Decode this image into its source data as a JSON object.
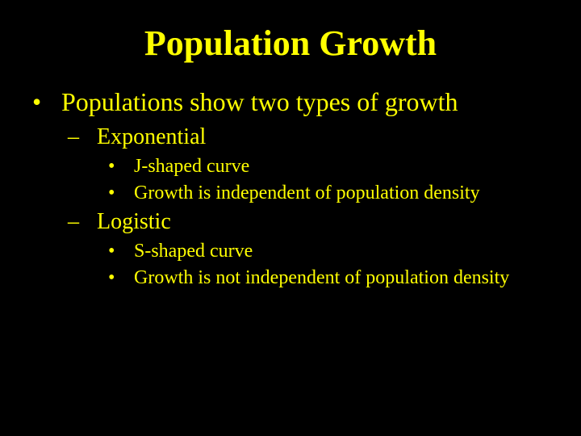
{
  "slide": {
    "background_color": "#000000",
    "text_color": "#ffff00",
    "font_family": "Times New Roman",
    "title": "Population Growth",
    "title_fontsize": 44,
    "title_bold": true,
    "bullets": {
      "level1_marker": "•",
      "level2_marker": "–",
      "level3_marker": "•",
      "level1_fontsize": 32,
      "level2_fontsize": 28,
      "level3_fontsize": 24
    },
    "content": {
      "l1": "Populations show two types of growth",
      "l2a": "Exponential",
      "l3a1": "J-shaped curve",
      "l3a2": "Growth is independent of population density",
      "l2b": "Logistic",
      "l3b1": "S-shaped curve",
      "l3b2": "Growth is not independent of population density"
    }
  }
}
